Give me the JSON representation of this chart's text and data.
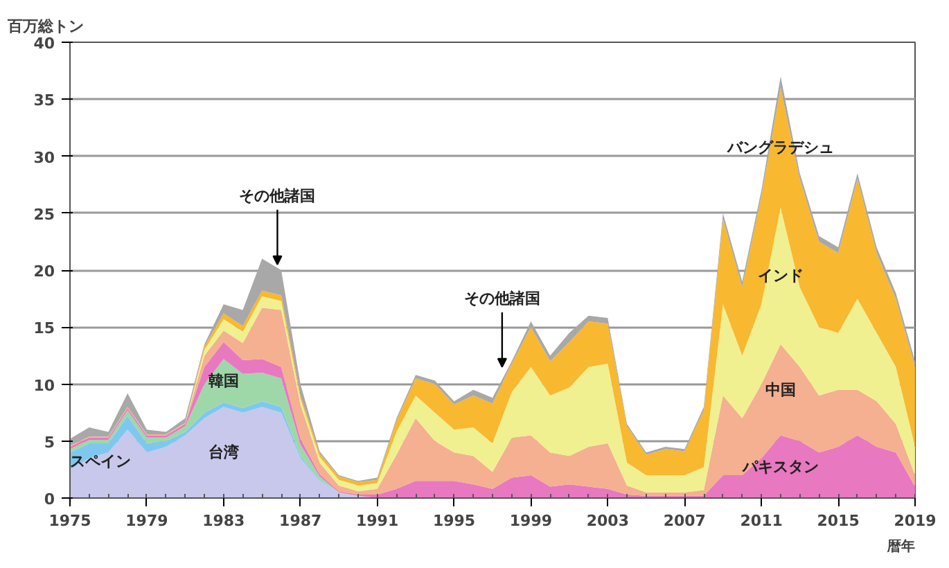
{
  "chart_data": {
    "type": "area",
    "stacked": true,
    "ylabel": "百万総トン",
    "xlabel": "暦年",
    "x": [
      1975,
      1976,
      1977,
      1978,
      1979,
      1980,
      1981,
      1982,
      1983,
      1984,
      1985,
      1986,
      1987,
      1988,
      1989,
      1990,
      1991,
      1992,
      1993,
      1994,
      1995,
      1996,
      1997,
      1998,
      1999,
      2000,
      2001,
      2002,
      2003,
      2004,
      2005,
      2006,
      2007,
      2008,
      2009,
      2010,
      2011,
      2012,
      2013,
      2014,
      2015,
      2016,
      2017,
      2018,
      2019
    ],
    "xlim": [
      1975,
      2019
    ],
    "xticks": [
      1975,
      1979,
      1983,
      1987,
      1991,
      1995,
      1999,
      2003,
      2007,
      2011,
      2015,
      2019
    ],
    "ylim": [
      0,
      40
    ],
    "yticks": [
      0,
      5,
      10,
      15,
      20,
      25,
      30,
      35,
      40
    ],
    "grid": "y",
    "series": [
      {
        "name": "台湾",
        "color": "#c8c8ec",
        "values": [
          2.5,
          3.5,
          4,
          6,
          4,
          4.5,
          5.5,
          7,
          8,
          7.5,
          8,
          7.5,
          3.5,
          1.5,
          0.5,
          0.2,
          0,
          0,
          0,
          0,
          0,
          0,
          0,
          0,
          0,
          0,
          0,
          0,
          0,
          0,
          0,
          0,
          0,
          0,
          0,
          0,
          0,
          0,
          0,
          0,
          0,
          0,
          0,
          0,
          0
        ]
      },
      {
        "name": "スペイン",
        "color": "#7ec8f0",
        "values": [
          1.5,
          1.3,
          0.8,
          1.2,
          0.8,
          0.5,
          0.3,
          0.5,
          0.4,
          0.4,
          0.5,
          0.5,
          0.2,
          0.1,
          0,
          0,
          0,
          0,
          0,
          0,
          0,
          0,
          0,
          0,
          0,
          0,
          0,
          0,
          0,
          0,
          0,
          0,
          0,
          0,
          0,
          0,
          0,
          0,
          0,
          0,
          0,
          0,
          0,
          0,
          0
        ]
      },
      {
        "name": "韓国",
        "color": "#9ed8a8",
        "values": [
          0.3,
          0.3,
          0.3,
          0.5,
          0.5,
          0.3,
          0.5,
          2.5,
          3.8,
          3,
          2.5,
          2.5,
          1,
          0.3,
          0,
          0,
          0,
          0,
          0,
          0,
          0,
          0,
          0,
          0,
          0,
          0,
          0,
          0,
          0,
          0,
          0,
          0,
          0,
          0,
          0,
          0,
          0,
          0,
          0,
          0,
          0,
          0,
          0,
          0,
          0
        ]
      },
      {
        "name": "パキスタン",
        "color": "#e878c0",
        "values": [
          0.2,
          0.2,
          0.2,
          0.2,
          0.2,
          0.2,
          0.2,
          1.5,
          1.5,
          1.2,
          1.2,
          1,
          0.5,
          0.2,
          0.1,
          0.1,
          0.3,
          0.8,
          1.5,
          1.5,
          1.5,
          1.2,
          0.8,
          1.8,
          2,
          1,
          1.2,
          1,
          0.8,
          0.3,
          0.2,
          0.2,
          0.2,
          0.2,
          2,
          2,
          3.5,
          5.5,
          5,
          4,
          4.5,
          5.5,
          4.5,
          4,
          1
        ]
      },
      {
        "name": "中国",
        "color": "#f4b090",
        "values": [
          0.1,
          0.1,
          0.1,
          0.1,
          0.1,
          0.1,
          0.1,
          1,
          1,
          1.5,
          4.5,
          5,
          3,
          1,
          0.5,
          0.3,
          0.5,
          3,
          5.5,
          3.5,
          2.5,
          2.5,
          1.5,
          3.5,
          3.5,
          3,
          2.5,
          3.5,
          4,
          0.8,
          0.3,
          0.3,
          0.3,
          0.5,
          7,
          5,
          6.5,
          8,
          6.5,
          5,
          5,
          4,
          4,
          2.5,
          1
        ]
      },
      {
        "name": "インド",
        "color": "#f0f090",
        "values": [
          0,
          0,
          0,
          0,
          0,
          0,
          0,
          0.5,
          1,
          1,
          1,
          0.8,
          0.5,
          0.5,
          0.5,
          0.5,
          0.5,
          2,
          2,
          2.5,
          2,
          2.5,
          2.5,
          4,
          6,
          5,
          6,
          7,
          7,
          2,
          1.5,
          1.5,
          1.5,
          2,
          8,
          5.5,
          7,
          12,
          7,
          6,
          5,
          8,
          6,
          5,
          2.5
        ]
      },
      {
        "name": "バングラデシュ",
        "color": "#f8b830",
        "values": [
          0,
          0,
          0,
          0,
          0,
          0,
          0,
          0.3,
          0.5,
          0.5,
          0.5,
          0.5,
          0.3,
          0.3,
          0.3,
          0.3,
          0.3,
          1,
          1.5,
          2.5,
          2.2,
          2.8,
          3.5,
          2.5,
          3.5,
          3,
          4,
          4,
          3.5,
          3.2,
          1.8,
          2.3,
          2.1,
          5,
          7.5,
          6,
          9.5,
          10.5,
          9.5,
          7.5,
          7,
          10.5,
          7,
          6,
          7
        ]
      },
      {
        "color": "#a8a8a8",
        "values": [
          0.6,
          0.8,
          0.4,
          1.2,
          0.4,
          0.2,
          0.4,
          0.2,
          0.8,
          1.4,
          2.8,
          2.2,
          1,
          0.2,
          0.1,
          0.1,
          0.2,
          0.2,
          0.3,
          0.3,
          0.3,
          0.5,
          0.5,
          0.2,
          0.5,
          0.5,
          0.8,
          0.5,
          0.5,
          0.2,
          0.2,
          0.2,
          0.2,
          0.3,
          0.5,
          0.5,
          0.5,
          1,
          0.5,
          0.5,
          0.5,
          0.5,
          0.5,
          0.5,
          0.5
        ]
      }
    ],
    "annotations": [
      {
        "text": "その他諸国",
        "x": 1985.8,
        "y": 20.5
      },
      {
        "text": "その他諸国",
        "x": 1997.5,
        "y": 11.5
      }
    ]
  }
}
